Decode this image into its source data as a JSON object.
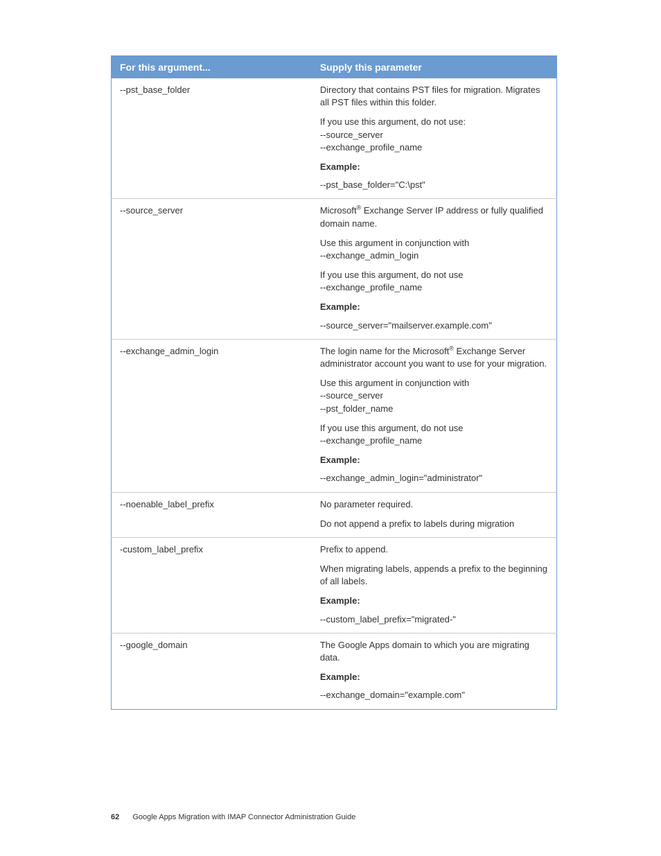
{
  "table": {
    "header": {
      "arg": "For this argument...",
      "param": "Supply this parameter"
    },
    "rows": [
      {
        "arg": "--pst_base_folder",
        "p1a": "Directory that contains PST files for migration. Migrates all PST files within this folder.",
        "p2a": "If you use this argument, do not use:",
        "p2b": "--source_server",
        "p2c": "--exchange_profile_name",
        "ex_label": "Example:",
        "ex": "--pst_base_folder=\"C:\\pst\""
      },
      {
        "arg": "--source_server",
        "p1_pre": "Microsoft",
        "p1_post": " Exchange Server IP address or fully qualified domain name.",
        "p2a": "Use this argument in conjunction with",
        "p2b": "--exchange_admin_login",
        "p3a": "If you use this argument, do not use",
        "p3b": "--exchange_profile_name",
        "ex_label": "Example:",
        "ex": "--source_server=\"mailserver.example.com\""
      },
      {
        "arg": "--exchange_admin_login",
        "p1_pre": "The login name for the Microsoft",
        "p1_post": " Exchange Server administrator account you want to use for your migration.",
        "p2a": "Use this argument in conjunction with",
        "p2b": "--source_server",
        "p2c": "--pst_folder_name",
        "p3a": "If you use this argument, do not use",
        "p3b": "--exchange_profile_name",
        "ex_label": "Example:",
        "ex": "--exchange_admin_login=\"administrator\""
      },
      {
        "arg": "--noenable_label_prefix",
        "p1": "No parameter required.",
        "p2": "Do not append a prefix to labels during migration"
      },
      {
        "arg": "-custom_label_prefix",
        "p1": "Prefix to append.",
        "p2": "When migrating labels, appends a prefix to the beginning of all labels.",
        "ex_label": "Example:",
        "ex": "--custom_label_prefix=\"migrated-\""
      },
      {
        "arg": "--google_domain",
        "p1": "The Google Apps domain to which you are migrating data.",
        "ex_label": "Example:",
        "ex": "--exchange_domain=\"example.com\""
      }
    ]
  },
  "reg": "®",
  "footer": {
    "page": "62",
    "title": "Google Apps Migration with IMAP Connector Administration Guide"
  }
}
